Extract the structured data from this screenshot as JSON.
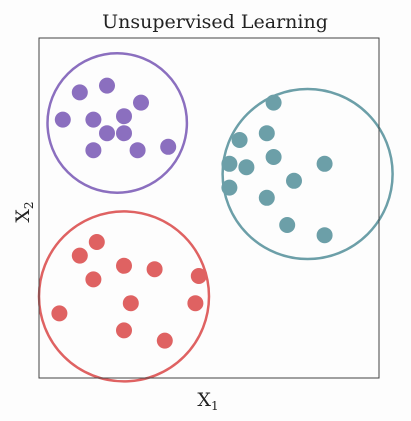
{
  "chart_data": {
    "type": "scatter",
    "title": "Unsupervised Learning",
    "xlabel": "X",
    "xlabel_sub": "1",
    "ylabel": "X",
    "ylabel_sub": "2",
    "xlim": [
      0,
      10
    ],
    "ylim": [
      0,
      10
    ],
    "grid": false,
    "clusters": [
      {
        "color": "#8b6fbf",
        "center": [
          2.3,
          7.5
        ],
        "radius": 2.05,
        "points": [
          [
            1.2,
            8.4
          ],
          [
            2.0,
            8.6
          ],
          [
            3.0,
            8.1
          ],
          [
            0.7,
            7.6
          ],
          [
            1.6,
            7.6
          ],
          [
            2.5,
            7.7
          ],
          [
            2.0,
            7.2
          ],
          [
            2.5,
            7.2
          ],
          [
            3.8,
            6.8
          ],
          [
            1.6,
            6.7
          ],
          [
            2.9,
            6.7
          ]
        ]
      },
      {
        "color": "#6c9fa8",
        "center": [
          7.9,
          6.0
        ],
        "radius": 2.5,
        "points": [
          [
            6.9,
            8.1
          ],
          [
            6.7,
            7.2
          ],
          [
            5.9,
            7.0
          ],
          [
            6.9,
            6.5
          ],
          [
            5.6,
            6.3
          ],
          [
            6.1,
            6.2
          ],
          [
            8.4,
            6.3
          ],
          [
            7.5,
            5.8
          ],
          [
            5.6,
            5.6
          ],
          [
            6.7,
            5.3
          ],
          [
            7.3,
            4.5
          ],
          [
            8.4,
            4.2
          ]
        ]
      },
      {
        "color": "#df6262",
        "center": [
          2.5,
          2.4
        ],
        "radius": 2.5,
        "points": [
          [
            1.7,
            4.0
          ],
          [
            1.2,
            3.6
          ],
          [
            2.5,
            3.3
          ],
          [
            3.4,
            3.2
          ],
          [
            1.6,
            2.9
          ],
          [
            4.7,
            3.0
          ],
          [
            2.7,
            2.2
          ],
          [
            4.6,
            2.2
          ],
          [
            0.6,
            1.9
          ],
          [
            2.5,
            1.4
          ],
          [
            3.7,
            1.1
          ]
        ]
      }
    ]
  }
}
